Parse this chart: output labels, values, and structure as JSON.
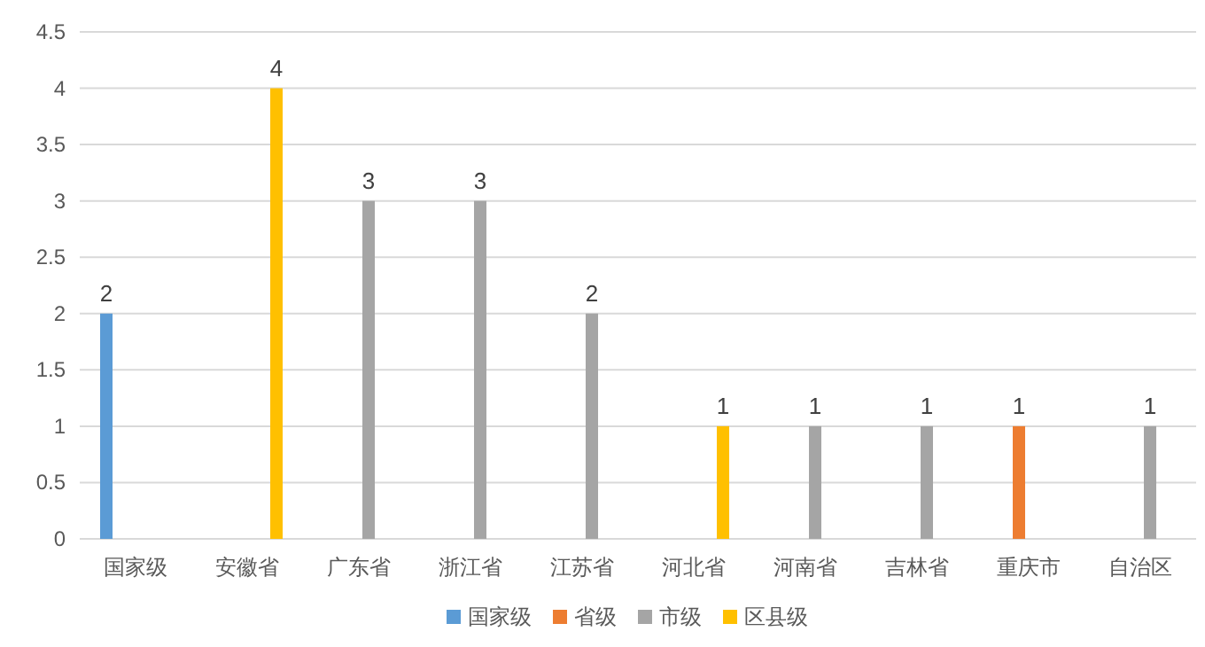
{
  "chart_data": {
    "type": "bar",
    "categories": [
      "国家级",
      "安徽省",
      "广东省",
      "浙江省",
      "江苏省",
      "河北省",
      "河南省",
      "吉林省",
      "重庆市",
      "自治区"
    ],
    "series": [
      {
        "name": "国家级",
        "color": "#5b9bd5",
        "values": [
          2,
          null,
          null,
          null,
          null,
          null,
          null,
          null,
          null,
          null
        ]
      },
      {
        "name": "省级",
        "color": "#ed7d31",
        "values": [
          null,
          null,
          null,
          null,
          null,
          null,
          null,
          null,
          1,
          null
        ]
      },
      {
        "name": "市级",
        "color": "#a5a5a5",
        "values": [
          null,
          null,
          3,
          3,
          2,
          null,
          1,
          1,
          null,
          1
        ]
      },
      {
        "name": "区县级",
        "color": "#ffc000",
        "values": [
          null,
          4,
          null,
          null,
          null,
          1,
          null,
          null,
          null,
          null
        ]
      }
    ],
    "ylim": [
      0,
      4.5
    ],
    "yticks": [
      0,
      0.5,
      1,
      1.5,
      2,
      2.5,
      3,
      3.5,
      4,
      4.5
    ],
    "grid": "y",
    "legend": "bottom",
    "data_labels": true
  }
}
